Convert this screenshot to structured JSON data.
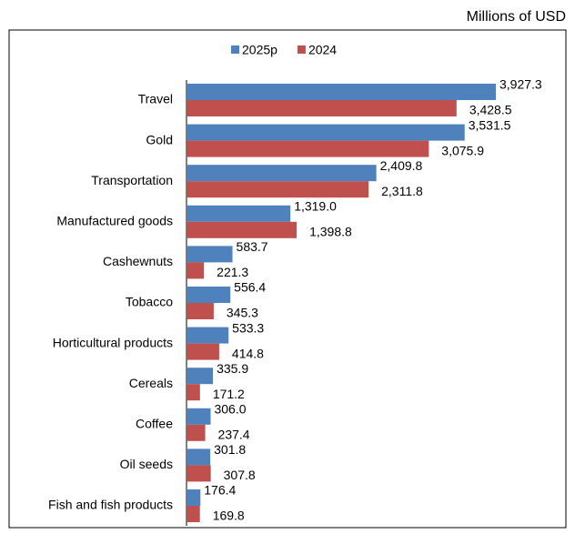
{
  "chart_data": {
    "type": "hbar",
    "unit_label": "Millions of USD",
    "categories": [
      "Travel",
      "Gold",
      "Transportation",
      "Manufactured goods",
      "Cashewnuts",
      "Tobacco",
      "Horticultural products",
      "Cereals",
      "Coffee",
      "Oil seeds",
      "Fish and fish products"
    ],
    "series": [
      {
        "name": "2025p",
        "color": "#4f81bd",
        "values": [
          3927.3,
          3531.5,
          2409.8,
          1319.0,
          583.7,
          556.4,
          533.3,
          335.9,
          306.0,
          301.8,
          176.4
        ],
        "value_labels": [
          "3,927.3",
          "3,531.5",
          "2,409.8",
          "1,319.0",
          "583.7",
          "556.4",
          "533.3",
          "335.9",
          "306.0",
          "301.8",
          "176.4"
        ]
      },
      {
        "name": "2024",
        "color": "#c0504d",
        "values": [
          3428.5,
          3075.9,
          2311.8,
          1398.8,
          221.3,
          345.3,
          414.8,
          171.2,
          237.4,
          307.8,
          169.8
        ],
        "value_labels": [
          "3,428.5",
          "3,075.9",
          "2,311.8",
          "1,398.8",
          "221.3",
          "345.3",
          "414.8",
          "171.2",
          "237.4",
          "307.8",
          "169.8"
        ]
      }
    ],
    "legend": "top"
  }
}
